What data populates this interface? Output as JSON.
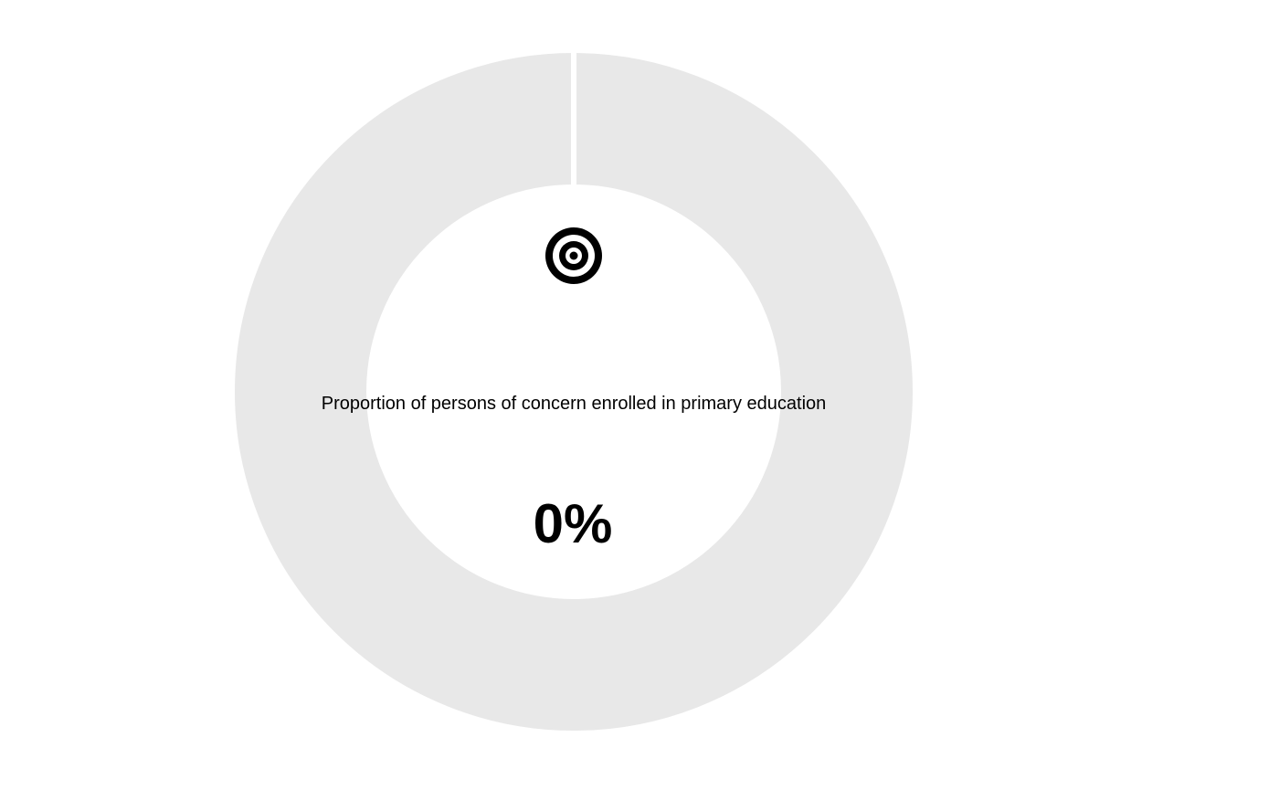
{
  "chart_data": {
    "type": "pie",
    "style": "donut-gauge",
    "label": "Proportion of persons of concern enrolled in primary education",
    "value_text": "0%",
    "value": 0,
    "max": 100,
    "icon": "target-icon",
    "colors": {
      "track": "#e8e8e8",
      "fill": "#000000",
      "text": "#000000",
      "icon": "#000000"
    }
  }
}
